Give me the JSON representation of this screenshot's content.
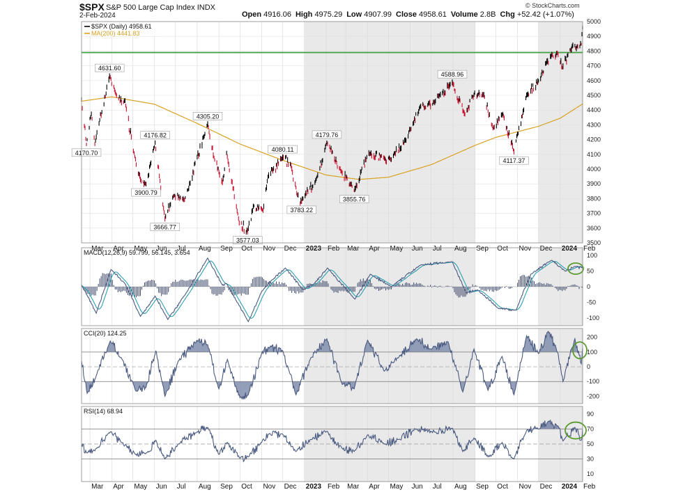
{
  "header": {
    "ticker": "$SPX",
    "name": "S&P 500 Large Cap Index",
    "exchange": "INDX",
    "date": "2-Feb-2024",
    "brand": "© StockCharts.com",
    "quote": [
      {
        "label": "Open",
        "value": "4916.06"
      },
      {
        "label": "High",
        "value": "4975.29"
      },
      {
        "label": "Low",
        "value": "4907.99"
      },
      {
        "label": "Close",
        "value": "4958.61"
      },
      {
        "label": "Volume",
        "value": "2.8B"
      },
      {
        "label": "Chg",
        "value": "+52.42 (+1.07%)"
      }
    ]
  },
  "colors": {
    "up": "#000000",
    "down": "#c8102e",
    "ma": "#d9a020",
    "resistance": "#3e9d3e",
    "indicator": "#4a5a80",
    "signal": "#2aa0b0",
    "circle": "#5a9a2e",
    "shade": "#e9e9e9",
    "fill": "#8793b0"
  },
  "chart_data": [
    {
      "type": "line",
      "panel": "price",
      "legend": [
        "$SPX (Daily) 4958.61",
        "MA(200) 4441.83"
      ],
      "x_ticks": [
        "Mar",
        "Apr",
        "May",
        "Jun",
        "Jul",
        "Aug",
        "Sep",
        "Oct",
        "Nov",
        "Dec",
        "2023",
        "Feb",
        "Mar",
        "Apr",
        "May",
        "Jun",
        "Jul",
        "Aug",
        "Sep",
        "Oct",
        "Nov",
        "Dec",
        "2024",
        "Feb"
      ],
      "ylim": [
        3500,
        5000
      ],
      "y_ticks": [
        3500,
        3600,
        3700,
        3800,
        3900,
        4000,
        4100,
        4200,
        4300,
        4400,
        4500,
        4600,
        4700,
        4800,
        4900,
        5000
      ],
      "resistance_level": 4790,
      "close_anchors": [
        {
          "date": "2022-02-17",
          "value": 4470
        },
        {
          "date": "2022-02-24",
          "value": 4170.7
        },
        {
          "date": "2022-03-03",
          "value": 4380
        },
        {
          "date": "2022-03-08",
          "value": 4170
        },
        {
          "date": "2022-03-29",
          "value": 4631.6
        },
        {
          "date": "2022-04-10",
          "value": 4480
        },
        {
          "date": "2022-04-20",
          "value": 4460
        },
        {
          "date": "2022-05-02",
          "value": 4130
        },
        {
          "date": "2022-05-12",
          "value": 3930
        },
        {
          "date": "2022-05-20",
          "value": 3900.79
        },
        {
          "date": "2022-06-02",
          "value": 4176.82
        },
        {
          "date": "2022-06-16",
          "value": 3666.77
        },
        {
          "date": "2022-06-28",
          "value": 3820
        },
        {
          "date": "2022-07-14",
          "value": 3790
        },
        {
          "date": "2022-08-16",
          "value": 4305.2
        },
        {
          "date": "2022-08-26",
          "value": 4060
        },
        {
          "date": "2022-09-06",
          "value": 3910
        },
        {
          "date": "2022-09-12",
          "value": 4110
        },
        {
          "date": "2022-09-30",
          "value": 3640
        },
        {
          "date": "2022-10-12",
          "value": 3577.03
        },
        {
          "date": "2022-10-20",
          "value": 3750
        },
        {
          "date": "2022-11-03",
          "value": 3720
        },
        {
          "date": "2022-11-10",
          "value": 3950
        },
        {
          "date": "2022-12-01",
          "value": 4080.11
        },
        {
          "date": "2022-12-13",
          "value": 4020
        },
        {
          "date": "2022-12-22",
          "value": 3820
        },
        {
          "date": "2022-12-28",
          "value": 3783.22
        },
        {
          "date": "2023-01-18",
          "value": 3930
        },
        {
          "date": "2023-02-02",
          "value": 4179.76
        },
        {
          "date": "2023-02-22",
          "value": 3990
        },
        {
          "date": "2023-03-13",
          "value": 3855.76
        },
        {
          "date": "2023-04-03",
          "value": 4110
        },
        {
          "date": "2023-04-25",
          "value": 4070
        },
        {
          "date": "2023-05-04",
          "value": 4060
        },
        {
          "date": "2023-05-26",
          "value": 4200
        },
        {
          "date": "2023-06-15",
          "value": 4420
        },
        {
          "date": "2023-07-05",
          "value": 4450
        },
        {
          "date": "2023-07-31",
          "value": 4588.96
        },
        {
          "date": "2023-08-18",
          "value": 4370
        },
        {
          "date": "2023-09-01",
          "value": 4515
        },
        {
          "date": "2023-09-14",
          "value": 4505
        },
        {
          "date": "2023-09-27",
          "value": 4275
        },
        {
          "date": "2023-10-11",
          "value": 4375
        },
        {
          "date": "2023-10-27",
          "value": 4117.37
        },
        {
          "date": "2023-11-14",
          "value": 4500
        },
        {
          "date": "2023-12-01",
          "value": 4595
        },
        {
          "date": "2023-12-19",
          "value": 4770
        },
        {
          "date": "2023-12-28",
          "value": 4785
        },
        {
          "date": "2024-01-04",
          "value": 4690
        },
        {
          "date": "2024-01-19",
          "value": 4840
        },
        {
          "date": "2024-01-31",
          "value": 4845
        },
        {
          "date": "2024-02-02",
          "value": 4958.61
        }
      ],
      "ma200_anchors": [
        {
          "date": "2022-02-17",
          "value": 4460
        },
        {
          "date": "2022-04-01",
          "value": 4490
        },
        {
          "date": "2022-06-01",
          "value": 4440
        },
        {
          "date": "2022-08-01",
          "value": 4310
        },
        {
          "date": "2022-10-01",
          "value": 4170
        },
        {
          "date": "2022-12-01",
          "value": 4060
        },
        {
          "date": "2023-02-01",
          "value": 3960
        },
        {
          "date": "2023-03-20",
          "value": 3930
        },
        {
          "date": "2023-05-01",
          "value": 3945
        },
        {
          "date": "2023-07-01",
          "value": 4030
        },
        {
          "date": "2023-09-01",
          "value": 4160
        },
        {
          "date": "2023-10-01",
          "value": 4215
        },
        {
          "date": "2023-12-01",
          "value": 4290
        },
        {
          "date": "2024-01-01",
          "value": 4345
        },
        {
          "date": "2024-02-02",
          "value": 4441.83
        }
      ],
      "labels": [
        {
          "text": "4631.60",
          "date": "2022-03-29",
          "value": 4631.6,
          "pos": "above"
        },
        {
          "text": "4170.70",
          "date": "2022-02-24",
          "value": 4170.7,
          "pos": "below"
        },
        {
          "text": "4176.82",
          "date": "2022-06-02",
          "value": 4176.82,
          "pos": "above"
        },
        {
          "text": "3900.79",
          "date": "2022-05-20",
          "value": 3900.79,
          "pos": "below"
        },
        {
          "text": "3666.77",
          "date": "2022-06-16",
          "value": 3666.77,
          "pos": "below"
        },
        {
          "text": "4305.20",
          "date": "2022-08-16",
          "value": 4305.2,
          "pos": "above"
        },
        {
          "text": "3577.03",
          "date": "2022-10-12",
          "value": 3577.03,
          "pos": "below"
        },
        {
          "text": "4080.11",
          "date": "2022-12-01",
          "value": 4080.11,
          "pos": "above"
        },
        {
          "text": "3783.22",
          "date": "2022-12-28",
          "value": 3783.22,
          "pos": "below"
        },
        {
          "text": "4179.76",
          "date": "2023-02-02",
          "value": 4179.76,
          "pos": "above"
        },
        {
          "text": "3855.76",
          "date": "2023-03-13",
          "value": 3855.76,
          "pos": "below"
        },
        {
          "text": "4588.96",
          "date": "2023-07-31",
          "value": 4588.96,
          "pos": "above"
        },
        {
          "text": "4117.37",
          "date": "2023-10-27",
          "value": 4117.37,
          "pos": "below"
        }
      ]
    },
    {
      "type": "line",
      "panel": "macd",
      "legend": "MACD(12,26,9) 59.799, 56.145, 3.654",
      "ylim": [
        -125,
        125
      ],
      "y_ticks": [
        100,
        50,
        0,
        -50,
        -100
      ],
      "macd_anchors": [
        {
          "date": "2022-02-17",
          "value": 5
        },
        {
          "date": "2022-03-10",
          "value": -85
        },
        {
          "date": "2022-03-31",
          "value": 55
        },
        {
          "date": "2022-04-20",
          "value": 10
        },
        {
          "date": "2022-05-12",
          "value": -95
        },
        {
          "date": "2022-06-02",
          "value": -30
        },
        {
          "date": "2022-06-20",
          "value": -105
        },
        {
          "date": "2022-07-15",
          "value": -25
        },
        {
          "date": "2022-08-16",
          "value": 92
        },
        {
          "date": "2022-09-06",
          "value": 5
        },
        {
          "date": "2022-09-12",
          "value": 10
        },
        {
          "date": "2022-10-13",
          "value": -112
        },
        {
          "date": "2022-11-01",
          "value": -15
        },
        {
          "date": "2022-11-15",
          "value": 20
        },
        {
          "date": "2022-12-05",
          "value": 60
        },
        {
          "date": "2022-12-30",
          "value": -10
        },
        {
          "date": "2023-01-15",
          "value": 10
        },
        {
          "date": "2023-02-03",
          "value": 60
        },
        {
          "date": "2023-03-14",
          "value": -40
        },
        {
          "date": "2023-04-05",
          "value": 40
        },
        {
          "date": "2023-05-05",
          "value": 0
        },
        {
          "date": "2023-06-16",
          "value": 70
        },
        {
          "date": "2023-07-31",
          "value": 80
        },
        {
          "date": "2023-08-20",
          "value": -20
        },
        {
          "date": "2023-09-05",
          "value": -10
        },
        {
          "date": "2023-10-05",
          "value": -70
        },
        {
          "date": "2023-10-30",
          "value": -75
        },
        {
          "date": "2023-11-20",
          "value": 40
        },
        {
          "date": "2023-12-20",
          "value": 85
        },
        {
          "date": "2024-01-08",
          "value": 50
        },
        {
          "date": "2024-01-22",
          "value": 65
        },
        {
          "date": "2024-02-02",
          "value": 59.799
        }
      ],
      "signal_lag_days": 9
    },
    {
      "type": "line",
      "panel": "cci",
      "legend": "CCI(20) 124.25",
      "ylim": [
        -250,
        260
      ],
      "y_ticks": [
        200,
        100,
        0,
        -100,
        -200
      ],
      "series_anchors": [
        {
          "date": "2022-02-17",
          "value": 40
        },
        {
          "date": "2022-02-25",
          "value": -180
        },
        {
          "date": "2022-03-10",
          "value": -60
        },
        {
          "date": "2022-03-30",
          "value": 175
        },
        {
          "date": "2022-04-15",
          "value": 60
        },
        {
          "date": "2022-05-05",
          "value": -160
        },
        {
          "date": "2022-05-20",
          "value": -140
        },
        {
          "date": "2022-06-03",
          "value": 110
        },
        {
          "date": "2022-06-16",
          "value": -200
        },
        {
          "date": "2022-07-05",
          "value": 40
        },
        {
          "date": "2022-08-01",
          "value": 180
        },
        {
          "date": "2022-08-16",
          "value": 150
        },
        {
          "date": "2022-09-01",
          "value": -150
        },
        {
          "date": "2022-09-13",
          "value": 50
        },
        {
          "date": "2022-10-01",
          "value": -210
        },
        {
          "date": "2022-10-13",
          "value": -190
        },
        {
          "date": "2022-11-01",
          "value": 90
        },
        {
          "date": "2022-11-11",
          "value": 130
        },
        {
          "date": "2022-12-01",
          "value": 110
        },
        {
          "date": "2022-12-20",
          "value": -190
        },
        {
          "date": "2023-01-10",
          "value": 60
        },
        {
          "date": "2023-02-02",
          "value": 190
        },
        {
          "date": "2023-02-24",
          "value": -120
        },
        {
          "date": "2023-03-13",
          "value": -150
        },
        {
          "date": "2023-04-01",
          "value": 180
        },
        {
          "date": "2023-04-25",
          "value": -30
        },
        {
          "date": "2023-05-15",
          "value": 60
        },
        {
          "date": "2023-06-10",
          "value": 190
        },
        {
          "date": "2023-07-01",
          "value": 120
        },
        {
          "date": "2023-07-25",
          "value": 170
        },
        {
          "date": "2023-08-15",
          "value": -170
        },
        {
          "date": "2023-08-31",
          "value": 120
        },
        {
          "date": "2023-09-20",
          "value": -160
        },
        {
          "date": "2023-10-10",
          "value": 70
        },
        {
          "date": "2023-10-27",
          "value": -190
        },
        {
          "date": "2023-11-14",
          "value": 210
        },
        {
          "date": "2023-12-01",
          "value": 90
        },
        {
          "date": "2023-12-15",
          "value": 240
        },
        {
          "date": "2023-12-29",
          "value": 90
        },
        {
          "date": "2024-01-05",
          "value": -100
        },
        {
          "date": "2024-01-22",
          "value": 190
        },
        {
          "date": "2024-01-31",
          "value": 20
        },
        {
          "date": "2024-02-02",
          "value": 124.25
        }
      ]
    },
    {
      "type": "line",
      "panel": "rsi",
      "legend": "RSI(14) 68.94",
      "ylim": [
        0,
        100
      ],
      "y_ticks": [
        90,
        70,
        50,
        30,
        10
      ],
      "series_anchors": [
        {
          "date": "2022-02-17",
          "value": 50
        },
        {
          "date": "2022-02-25",
          "value": 38
        },
        {
          "date": "2022-03-10",
          "value": 44
        },
        {
          "date": "2022-03-30",
          "value": 66
        },
        {
          "date": "2022-04-15",
          "value": 52
        },
        {
          "date": "2022-05-05",
          "value": 36
        },
        {
          "date": "2022-05-20",
          "value": 38
        },
        {
          "date": "2022-06-03",
          "value": 55
        },
        {
          "date": "2022-06-16",
          "value": 30
        },
        {
          "date": "2022-07-05",
          "value": 50
        },
        {
          "date": "2022-08-01",
          "value": 66
        },
        {
          "date": "2022-08-16",
          "value": 72
        },
        {
          "date": "2022-09-01",
          "value": 36
        },
        {
          "date": "2022-09-13",
          "value": 52
        },
        {
          "date": "2022-10-01",
          "value": 31
        },
        {
          "date": "2022-10-13",
          "value": 33
        },
        {
          "date": "2022-11-01",
          "value": 52
        },
        {
          "date": "2022-11-11",
          "value": 63
        },
        {
          "date": "2022-12-01",
          "value": 63
        },
        {
          "date": "2022-12-20",
          "value": 40
        },
        {
          "date": "2023-01-10",
          "value": 56
        },
        {
          "date": "2023-02-02",
          "value": 67
        },
        {
          "date": "2023-02-24",
          "value": 44
        },
        {
          "date": "2023-03-13",
          "value": 40
        },
        {
          "date": "2023-04-01",
          "value": 62
        },
        {
          "date": "2023-04-25",
          "value": 50
        },
        {
          "date": "2023-05-15",
          "value": 56
        },
        {
          "date": "2023-06-10",
          "value": 70
        },
        {
          "date": "2023-07-01",
          "value": 66
        },
        {
          "date": "2023-07-31",
          "value": 71
        },
        {
          "date": "2023-08-15",
          "value": 40
        },
        {
          "date": "2023-08-31",
          "value": 58
        },
        {
          "date": "2023-09-20",
          "value": 33
        },
        {
          "date": "2023-10-10",
          "value": 52
        },
        {
          "date": "2023-10-27",
          "value": 30
        },
        {
          "date": "2023-11-14",
          "value": 68
        },
        {
          "date": "2023-12-01",
          "value": 70
        },
        {
          "date": "2023-12-15",
          "value": 80
        },
        {
          "date": "2023-12-29",
          "value": 74
        },
        {
          "date": "2024-01-05",
          "value": 54
        },
        {
          "date": "2024-01-22",
          "value": 72
        },
        {
          "date": "2024-01-31",
          "value": 55
        },
        {
          "date": "2024-02-02",
          "value": 68.94
        }
      ]
    }
  ]
}
